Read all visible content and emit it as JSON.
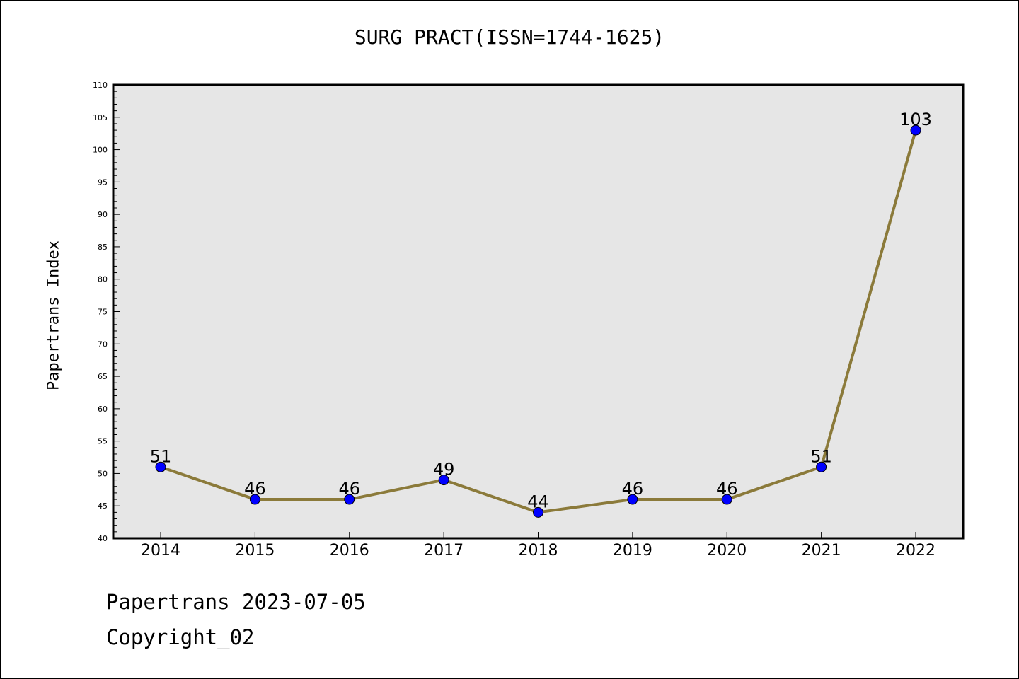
{
  "chart_data": {
    "type": "line",
    "title": "SURG PRACT(ISSN=1744-1625)",
    "xlabel": "",
    "ylabel": "Papertrans Index",
    "categories": [
      "2014",
      "2015",
      "2016",
      "2017",
      "2018",
      "2019",
      "2020",
      "2021",
      "2022"
    ],
    "values": [
      51,
      46,
      46,
      49,
      44,
      46,
      46,
      51,
      103
    ],
    "data_labels": [
      "51",
      "46",
      "46",
      "49",
      "44",
      "46",
      "46",
      "51",
      "103"
    ],
    "ylim": [
      40,
      110
    ],
    "y_ticks": [
      40,
      45,
      50,
      55,
      60,
      65,
      70,
      75,
      80,
      85,
      90,
      95,
      100,
      105,
      110
    ],
    "grid": false,
    "legend": "none",
    "colors": {
      "line": "#8B7A3A",
      "marker": "#0000FF",
      "plot_background": "#E6E6E6"
    }
  },
  "footer": {
    "date_text": "Papertrans 2023-07-05",
    "copyright_text": "Copyright_02"
  }
}
